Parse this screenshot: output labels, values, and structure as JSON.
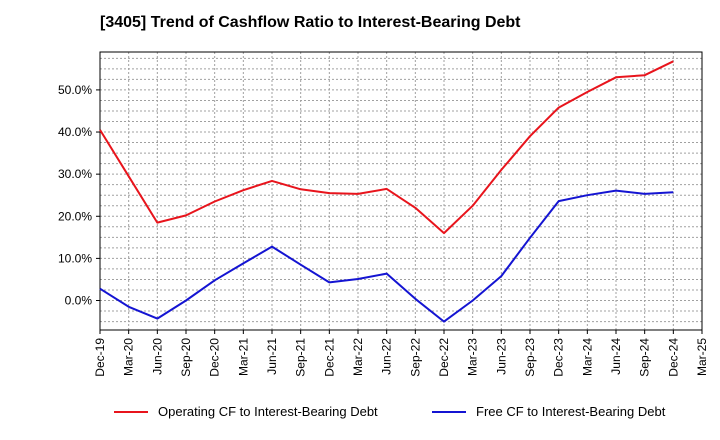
{
  "chart_data": {
    "type": "line",
    "title": "[3405]  Trend of Cashflow Ratio to Interest-Bearing Debt",
    "x": [
      "Dec-19",
      "Mar-20",
      "Jun-20",
      "Sep-20",
      "Dec-20",
      "Mar-21",
      "Jun-21",
      "Sep-21",
      "Dec-21",
      "Mar-22",
      "Jun-22",
      "Sep-22",
      "Dec-22",
      "Mar-23",
      "Jun-23",
      "Sep-23",
      "Dec-23",
      "Mar-24",
      "Jun-24",
      "Sep-24",
      "Dec-24"
    ],
    "x_ticks": [
      "Dec-19",
      "Mar-20",
      "Jun-20",
      "Sep-20",
      "Dec-20",
      "Mar-21",
      "Jun-21",
      "Sep-21",
      "Dec-21",
      "Mar-22",
      "Jun-22",
      "Sep-22",
      "Dec-22",
      "Mar-23",
      "Jun-23",
      "Sep-23",
      "Dec-23",
      "Mar-24",
      "Jun-24",
      "Sep-24",
      "Dec-24",
      "Mar-25"
    ],
    "y_ticks": [
      "0.0%",
      "10.0%",
      "20.0%",
      "30.0%",
      "40.0%",
      "50.0%"
    ],
    "ylim": [
      -7,
      59
    ],
    "grid": true,
    "legend_position": "bottom",
    "series": [
      {
        "name": "Operating CF to Interest-Bearing Debt",
        "color": "#e8141c",
        "values": [
          40.5,
          29.5,
          18.5,
          20.2,
          23.5,
          26.2,
          28.4,
          26.4,
          25.5,
          25.3,
          26.5,
          22.0,
          16.0,
          22.5,
          31.0,
          39.0,
          45.8,
          49.5,
          53.0,
          53.5,
          56.8
        ]
      },
      {
        "name": "Free CF to Interest-Bearing Debt",
        "color": "#1414d2",
        "values": [
          2.8,
          -1.5,
          -4.3,
          0.0,
          4.8,
          8.8,
          12.8,
          8.5,
          4.3,
          5.1,
          6.4,
          0.4,
          -5.0,
          0.0,
          5.8,
          14.9,
          23.6,
          25.0,
          26.1,
          25.3,
          25.7
        ]
      }
    ]
  }
}
